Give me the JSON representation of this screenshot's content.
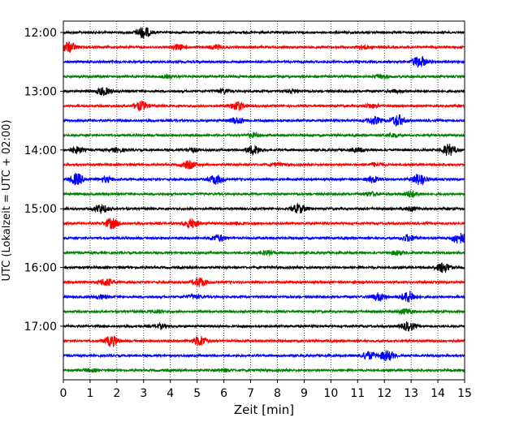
{
  "chart_data": {
    "type": "line",
    "title": "",
    "xlabel": "Zeit  [min]",
    "ylabel": "UTC (Lokalzeit = UTC + 02:00)",
    "xlim": [
      0,
      15
    ],
    "x_ticks": [
      "0",
      "1",
      "2",
      "3",
      "4",
      "5",
      "6",
      "7",
      "8",
      "9",
      "10",
      "11",
      "12",
      "13",
      "14",
      "15"
    ],
    "y_ticks": [
      "12:00",
      "13:00",
      "14:00",
      "15:00",
      "16:00",
      "17:00"
    ],
    "grid": "vertical dotted",
    "line_colors": [
      "#000000",
      "#ff0000",
      "#0000ff",
      "#008000"
    ],
    "series": [
      {
        "time": "12:00",
        "color": "#000000",
        "events": [
          [
            3.0,
            9
          ]
        ]
      },
      {
        "time": "12:15",
        "color": "#ff0000",
        "events": [
          [
            0.2,
            8
          ],
          [
            4.3,
            4
          ],
          [
            5.7,
            3
          ],
          [
            11.2,
            3
          ]
        ]
      },
      {
        "time": "12:30",
        "color": "#0000ff",
        "events": [
          [
            13.3,
            9
          ]
        ]
      },
      {
        "time": "12:45",
        "color": "#008000",
        "events": [
          [
            3.9,
            2
          ],
          [
            11.9,
            3
          ]
        ]
      },
      {
        "time": "13:00",
        "color": "#000000",
        "events": [
          [
            1.5,
            6
          ],
          [
            6.0,
            3
          ],
          [
            8.6,
            2
          ],
          [
            12.4,
            2
          ]
        ]
      },
      {
        "time": "13:15",
        "color": "#ff0000",
        "events": [
          [
            2.9,
            7
          ],
          [
            6.5,
            7
          ],
          [
            11.5,
            3
          ]
        ]
      },
      {
        "time": "13:30",
        "color": "#0000ff",
        "events": [
          [
            6.5,
            5
          ],
          [
            11.6,
            6
          ],
          [
            12.5,
            9
          ]
        ]
      },
      {
        "time": "13:45",
        "color": "#008000",
        "events": [
          [
            7.1,
            3
          ],
          [
            12.3,
            3
          ]
        ]
      },
      {
        "time": "14:00",
        "color": "#000000",
        "events": [
          [
            0.5,
            5
          ],
          [
            2.0,
            3
          ],
          [
            4.8,
            3
          ],
          [
            7.1,
            7
          ],
          [
            11.0,
            3
          ],
          [
            14.4,
            9
          ]
        ]
      },
      {
        "time": "14:15",
        "color": "#ff0000",
        "events": [
          [
            4.7,
            6
          ],
          [
            8.0,
            2
          ],
          [
            11.7,
            3
          ]
        ]
      },
      {
        "time": "14:30",
        "color": "#0000ff",
        "events": [
          [
            0.5,
            9
          ],
          [
            1.6,
            4
          ],
          [
            5.7,
            7
          ],
          [
            11.6,
            5
          ],
          [
            13.3,
            9
          ]
        ]
      },
      {
        "time": "14:45",
        "color": "#008000",
        "events": [
          [
            11.5,
            3
          ],
          [
            13.0,
            5
          ]
        ]
      },
      {
        "time": "15:00",
        "color": "#000000",
        "events": [
          [
            1.4,
            7
          ],
          [
            8.8,
            7
          ],
          [
            13.0,
            3
          ]
        ]
      },
      {
        "time": "15:15",
        "color": "#ff0000",
        "events": [
          [
            1.8,
            8
          ],
          [
            4.8,
            7
          ],
          [
            6.5,
            2
          ]
        ]
      },
      {
        "time": "15:30",
        "color": "#0000ff",
        "events": [
          [
            5.8,
            5
          ],
          [
            12.9,
            5
          ],
          [
            14.8,
            9
          ]
        ]
      },
      {
        "time": "15:45",
        "color": "#008000",
        "events": [
          [
            7.6,
            3
          ],
          [
            12.5,
            3
          ]
        ]
      },
      {
        "time": "16:00",
        "color": "#000000",
        "events": [
          [
            14.2,
            8
          ]
        ]
      },
      {
        "time": "16:15",
        "color": "#ff0000",
        "events": [
          [
            1.6,
            6
          ],
          [
            5.1,
            7
          ]
        ]
      },
      {
        "time": "16:30",
        "color": "#0000ff",
        "events": [
          [
            1.4,
            3
          ],
          [
            4.9,
            3
          ],
          [
            11.8,
            6
          ],
          [
            12.9,
            9
          ]
        ]
      },
      {
        "time": "16:45",
        "color": "#008000",
        "events": [
          [
            3.5,
            2
          ],
          [
            12.8,
            4
          ]
        ]
      },
      {
        "time": "17:00",
        "color": "#000000",
        "events": [
          [
            3.6,
            3
          ],
          [
            12.9,
            7
          ]
        ]
      },
      {
        "time": "17:15",
        "color": "#ff0000",
        "events": [
          [
            1.8,
            8
          ],
          [
            5.1,
            8
          ]
        ]
      },
      {
        "time": "17:30",
        "color": "#0000ff",
        "events": [
          [
            11.4,
            6
          ],
          [
            12.1,
            8
          ]
        ]
      },
      {
        "time": "17:45",
        "color": "#008000",
        "events": [
          [
            1.0,
            2
          ],
          [
            6.0,
            2
          ]
        ]
      }
    ]
  }
}
